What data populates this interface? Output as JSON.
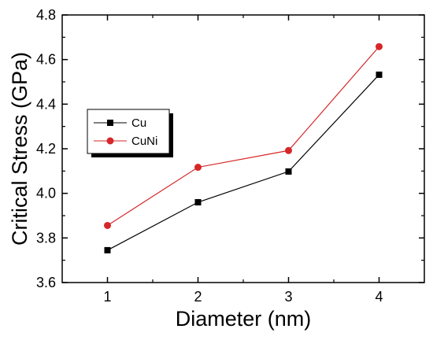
{
  "chart_data": {
    "type": "line",
    "title": "",
    "xlabel": "Diameter (nm)",
    "ylabel": "Critical Stress (GPa)",
    "x": [
      1,
      2,
      3,
      4
    ],
    "x_ticks": [
      "1",
      "2",
      "3",
      "4"
    ],
    "xlim": [
      0.5,
      4.5
    ],
    "ylim": [
      3.6,
      4.8
    ],
    "y_ticks": [
      "3.6",
      "3.8",
      "4.0",
      "4.2",
      "4.4",
      "4.6",
      "4.8"
    ],
    "grid": false,
    "legend_position": "left",
    "series": [
      {
        "name": "Cu",
        "values": [
          3.745,
          3.96,
          4.098,
          4.532
        ],
        "color": "#000000",
        "marker": "square"
      },
      {
        "name": "CuNi",
        "values": [
          3.856,
          4.117,
          4.192,
          4.658
        ],
        "color": "#d62728",
        "marker": "circle"
      }
    ]
  }
}
